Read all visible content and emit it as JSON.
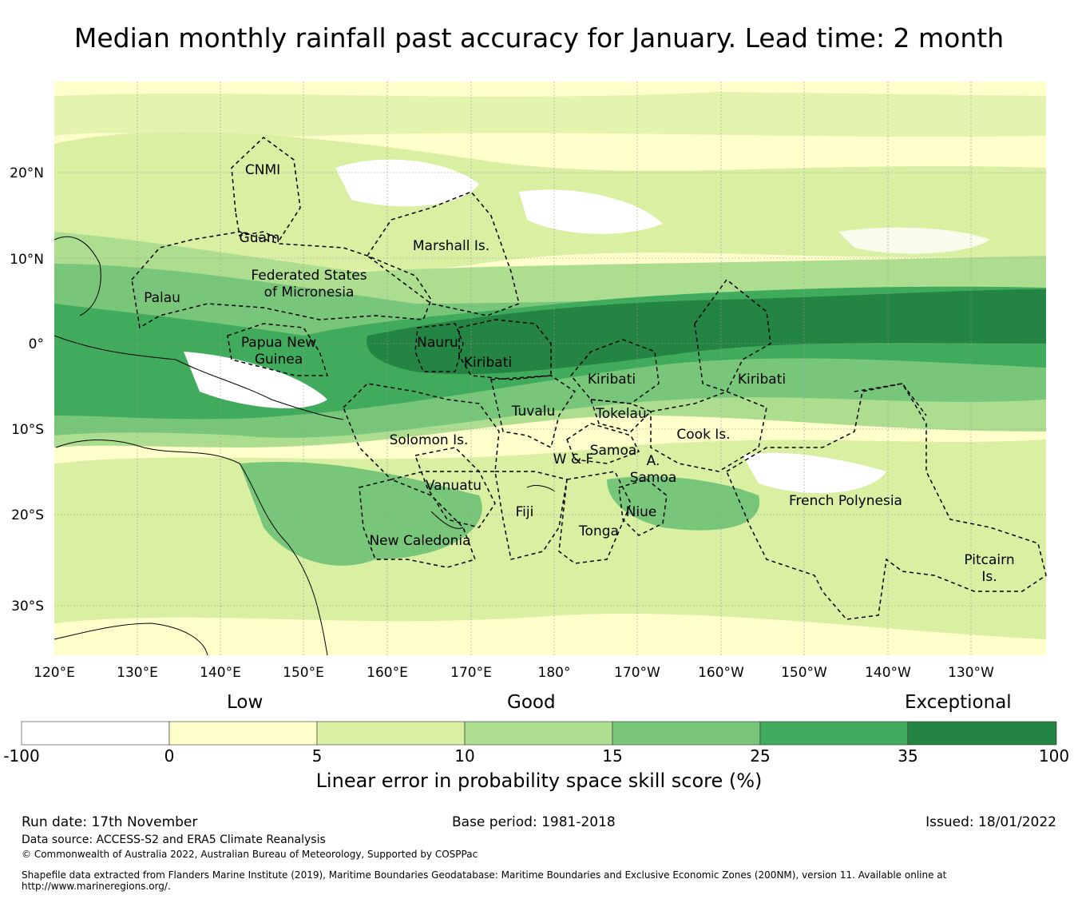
{
  "title": "Median monthly rainfall past accuracy for January. Lead time: 2 month",
  "map": {
    "lat_labels": [
      "20°N",
      "10°N",
      "0°",
      "10°S",
      "20°S",
      "30°S"
    ],
    "lon_labels": [
      "120°E",
      "130°E",
      "140°E",
      "150°E",
      "160°E",
      "170°E",
      "180°",
      "170°W",
      "160°W",
      "150°W",
      "140°W",
      "130°W"
    ],
    "regions": [
      {
        "name": "CNMI",
        "lines": [
          "CNMI"
        ]
      },
      {
        "name": "Guam",
        "lines": [
          "Guam"
        ]
      },
      {
        "name": "Marshall Is.",
        "lines": [
          "Marshall Is."
        ]
      },
      {
        "name": "Federated States of Micronesia",
        "lines": [
          "Federated States",
          "of Micronesia"
        ]
      },
      {
        "name": "Palau",
        "lines": [
          "Palau"
        ]
      },
      {
        "name": "Papua New Guinea",
        "lines": [
          "Papua New",
          "Guinea"
        ]
      },
      {
        "name": "Nauru",
        "lines": [
          "Nauru"
        ]
      },
      {
        "name": "Kiribati (Gilbert)",
        "lines": [
          "Kiribati"
        ]
      },
      {
        "name": "Kiribati (Phoenix)",
        "lines": [
          "Kiribati"
        ]
      },
      {
        "name": "Kiribati (Line)",
        "lines": [
          "Kiribati"
        ]
      },
      {
        "name": "Tuvalu",
        "lines": [
          "Tuvalu"
        ]
      },
      {
        "name": "Tokelau",
        "lines": [
          "Tokelau"
        ]
      },
      {
        "name": "Solomon Is.",
        "lines": [
          "Solomon Is."
        ]
      },
      {
        "name": "Samoa",
        "lines": [
          "Samoa"
        ]
      },
      {
        "name": "W & F",
        "lines": [
          "W & F"
        ]
      },
      {
        "name": "A. Samoa",
        "lines": [
          "A.",
          "Samoa"
        ]
      },
      {
        "name": "Cook Is.",
        "lines": [
          "Cook Is."
        ]
      },
      {
        "name": "Vanuatu",
        "lines": [
          "Vanuatu"
        ]
      },
      {
        "name": "Fiji",
        "lines": [
          "Fiji"
        ]
      },
      {
        "name": "Niue",
        "lines": [
          "Niue"
        ]
      },
      {
        "name": "Tonga",
        "lines": [
          "Tonga"
        ]
      },
      {
        "name": "New Caledonia",
        "lines": [
          "New Caledonia"
        ]
      },
      {
        "name": "French Polynesia",
        "lines": [
          "French Polynesia"
        ]
      },
      {
        "name": "Pitcairn Is.",
        "lines": [
          "Pitcairn",
          "Is."
        ]
      }
    ]
  },
  "colorbar": {
    "categories": [
      "Low",
      "Good",
      "Exceptional"
    ],
    "ticks": [
      "-100",
      "0",
      "5",
      "10",
      "15",
      "25",
      "35",
      "100"
    ],
    "colors": [
      "#ffffff",
      "#ffffcc",
      "#d9f0a3",
      "#addd8e",
      "#78c679",
      "#41ab5d",
      "#238443"
    ],
    "title": "Linear error in probability space skill score (%)"
  },
  "footer": {
    "run_date": "Run date: 17th November",
    "base_period": "Base period: 1981-2018",
    "issued": "Issued: 18/01/2022",
    "data_source": "Data source: ACCESS-S2 and ERA5 Climate Reanalysis",
    "copyright": "© Commonwealth of Australia 2022, Australian Bureau of Meteorology, Supported by COSPPac",
    "shapefile": "Shapefile data extracted from Flanders Marine Institute (2019), Maritime Boundaries Geodatabase: Maritime Boundaries and Exclusive Economic Zones (200NM), version 11. Available online at",
    "url": "http://www.marineregions.org/."
  }
}
